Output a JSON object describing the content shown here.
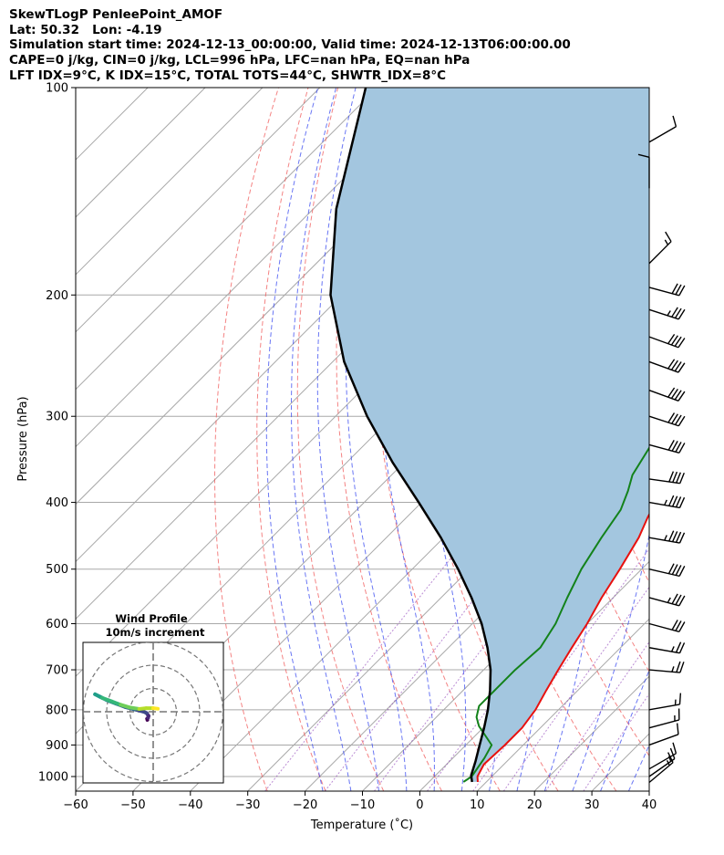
{
  "header": {
    "line1": "SkewTLogP PenleePoint_AMOF",
    "line2": "Lat: 50.32   Lon: -4.19",
    "line3": "Simulation start time: 2024-12-13_00:00:00, Valid time: 2024-12-13T06:00:00.00",
    "line4": "CAPE=0 j/kg, CIN=0 j/kg, LCL=996 hPa, LFC=nan hPa, EQ=nan hPa",
    "line5": "LFT IDX=9°C, K IDX=15°C, TOTAL TOTS=44°C, SHWTR_IDX=8°C"
  },
  "colors": {
    "temperature": "#e8110f",
    "dewpoint": "#13821a",
    "parcel": "#000000",
    "cape_fill": "#a3c6df",
    "dry_adiabat": "#f05a5a",
    "moist_adiabat": "#2a3cf0",
    "mixing_ratio": "#8e3fb8",
    "isotherm": "#a8a8a8"
  },
  "chart_data": [
    {
      "type": "line",
      "subtype": "skew-t log-p",
      "xlabel": "Temperature (˚C)",
      "ylabel": "Pressure (hPa)",
      "xlim": [
        -60,
        40
      ],
      "ylim": [
        1050,
        100
      ],
      "yscale": "log",
      "xticks": [
        "−60",
        "−50",
        "−40",
        "−30",
        "−20",
        "−10",
        "0",
        "10",
        "20",
        "30",
        "40"
      ],
      "yticks": [
        "100",
        "200",
        "300",
        "400",
        "500",
        "600",
        "700",
        "800",
        "900",
        "1000"
      ],
      "grid": true,
      "series": [
        {
          "key": "temperature",
          "points": [
            [
              8.5,
              1018
            ],
            [
              7.5,
              1000
            ],
            [
              6.5,
              960
            ],
            [
              6.8,
              900
            ],
            [
              6.8,
              850
            ],
            [
              6.0,
              800
            ],
            [
              4.5,
              750
            ],
            [
              3.0,
              700
            ],
            [
              1.5,
              650
            ],
            [
              0.0,
              600
            ],
            [
              -2.0,
              550
            ],
            [
              -3.8,
              500
            ],
            [
              -6.0,
              450
            ],
            [
              -8.0,
              420
            ],
            [
              -10.0,
              385
            ],
            [
              -12.5,
              355
            ],
            [
              -14.0,
              335
            ],
            [
              -14.5,
              300
            ],
            [
              -15.0,
              270
            ],
            [
              -15.0,
              245
            ],
            [
              -14.0,
              220
            ],
            [
              -12.0,
              200
            ],
            [
              -9.5,
              182
            ],
            [
              -6.5,
              165
            ],
            [
              -4.5,
              152
            ],
            [
              -3.0,
              140
            ],
            [
              -2.0,
              128
            ],
            [
              -1.0,
              117
            ],
            [
              0.0,
              108
            ],
            [
              1.0,
              100
            ]
          ]
        },
        {
          "key": "dewpoint",
          "points": [
            [
              6.0,
              1018
            ],
            [
              6.5,
              1000
            ],
            [
              5.5,
              940
            ],
            [
              4.5,
              900
            ],
            [
              -1.0,
              845
            ],
            [
              -3.0,
              820
            ],
            [
              -4.5,
              790
            ],
            [
              -4.5,
              700
            ],
            [
              -4.0,
              650
            ],
            [
              -5.5,
              600
            ],
            [
              -8.0,
              550
            ],
            [
              -10.5,
              500
            ],
            [
              -12.5,
              450
            ],
            [
              -14.0,
              410
            ],
            [
              -16.0,
              385
            ],
            [
              -18.0,
              365
            ],
            [
              -20.0,
              330
            ],
            [
              -22.0,
              300
            ],
            [
              -24.0,
              265
            ],
            [
              -25.5,
              240
            ],
            [
              -25.0,
              215
            ],
            [
              -24.0,
              190
            ],
            [
              -23.0,
              165
            ],
            [
              -23.0,
              155
            ],
            [
              -24.0,
              145
            ],
            [
              -24.0,
              135
            ],
            [
              -22.5,
              125
            ],
            [
              -21.0,
              115
            ],
            [
              -19.0,
              106
            ],
            [
              -18.0,
              100
            ]
          ]
        },
        {
          "key": "parcel",
          "points": [
            [
              7.5,
              1018
            ],
            [
              6.2,
              996
            ],
            [
              4.5,
              950
            ],
            [
              2.4,
              900
            ],
            [
              0.2,
              850
            ],
            [
              -2.3,
              800
            ],
            [
              -5.3,
              750
            ],
            [
              -8.8,
              700
            ],
            [
              -13.2,
              650
            ],
            [
              -18.4,
              600
            ],
            [
              -24.7,
              550
            ],
            [
              -32.0,
              500
            ],
            [
              -40.5,
              450
            ],
            [
              -50.5,
              400
            ],
            [
              -62.0,
              350
            ],
            [
              -74.5,
              300
            ],
            [
              -88.0,
              250
            ],
            [
              -102.0,
              200
            ],
            [
              -116.0,
              150
            ],
            [
              -132.0,
              100
            ]
          ]
        }
      ]
    },
    {
      "type": "scatter",
      "subtype": "wind hodograph",
      "title": "Wind Profile",
      "subtitle": "10m/s increment",
      "ring_increment": 10,
      "rings": 3,
      "points_uv": [
        [
          -2.5,
          -3.5
        ],
        [
          -2.6,
          -3.0
        ],
        [
          -2.2,
          -2.6
        ],
        [
          -2.0,
          -1.8
        ],
        [
          -2.8,
          -0.6
        ],
        [
          -4.0,
          0.0
        ],
        [
          -8.0,
          1.0
        ],
        [
          -12.0,
          2.0
        ],
        [
          -16.0,
          3.5
        ],
        [
          -20.0,
          5.0
        ],
        [
          -23.0,
          6.5
        ],
        [
          -25.0,
          7.5
        ],
        [
          -22.0,
          6.0
        ],
        [
          -18.0,
          4.5
        ],
        [
          -14.0,
          3.0
        ],
        [
          -10.0,
          1.8
        ],
        [
          -6.0,
          1.2
        ],
        [
          -3.0,
          1.5
        ],
        [
          0.0,
          1.5
        ],
        [
          2.0,
          1.3
        ]
      ]
    }
  ],
  "wind_barbs": [
    {
      "p": 1020,
      "speed": 15,
      "dir": 230
    },
    {
      "p": 1000,
      "speed": 15,
      "dir": 235
    },
    {
      "p": 975,
      "speed": 10,
      "dir": 240
    },
    {
      "p": 900,
      "speed": 10,
      "dir": 250
    },
    {
      "p": 850,
      "speed": 15,
      "dir": 255
    },
    {
      "p": 800,
      "speed": 15,
      "dir": 260
    },
    {
      "p": 700,
      "speed": 25,
      "dir": 275
    },
    {
      "p": 650,
      "speed": 25,
      "dir": 280
    },
    {
      "p": 600,
      "speed": 30,
      "dir": 285
    },
    {
      "p": 550,
      "speed": 35,
      "dir": 285
    },
    {
      "p": 500,
      "speed": 40,
      "dir": 283
    },
    {
      "p": 450,
      "speed": 45,
      "dir": 280
    },
    {
      "p": 400,
      "speed": 45,
      "dir": 280
    },
    {
      "p": 370,
      "speed": 40,
      "dir": 278
    },
    {
      "p": 330,
      "speed": 40,
      "dir": 285
    },
    {
      "p": 300,
      "speed": 40,
      "dir": 288
    },
    {
      "p": 275,
      "speed": 40,
      "dir": 290
    },
    {
      "p": 250,
      "speed": 40,
      "dir": 290
    },
    {
      "p": 230,
      "speed": 40,
      "dir": 290
    },
    {
      "p": 210,
      "speed": 35,
      "dir": 288
    },
    {
      "p": 195,
      "speed": 30,
      "dir": 285
    },
    {
      "p": 180,
      "speed": 15,
      "dir": 225
    },
    {
      "p": 140,
      "speed": 10,
      "dir": 180
    },
    {
      "p": 120,
      "speed": 10,
      "dir": 240
    }
  ]
}
